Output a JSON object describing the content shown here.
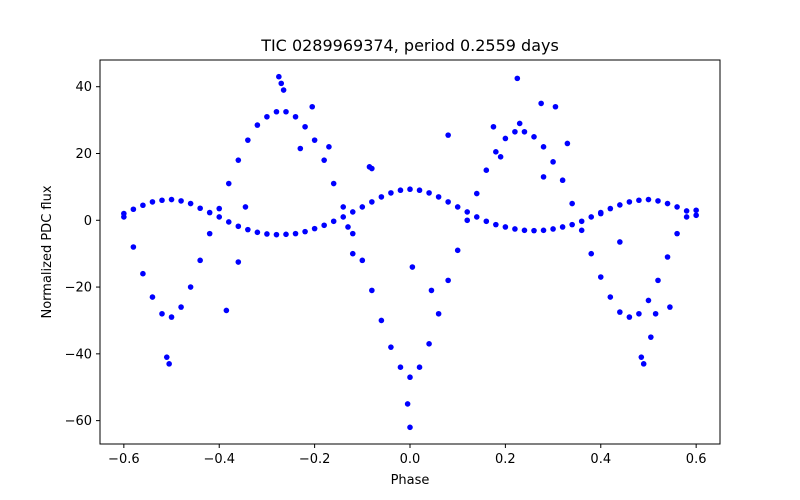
{
  "chart_data": {
    "type": "scatter",
    "title": "TIC 0289969374, period 0.2559 days",
    "xlabel": "Phase",
    "ylabel": "Normalized PDC flux",
    "xlim": [
      -0.65,
      0.65
    ],
    "ylim": [
      -67,
      48
    ],
    "xticks": [
      -0.6,
      -0.4,
      -0.2,
      0.0,
      0.2,
      0.4,
      0.6
    ],
    "xtick_labels": [
      "−0.6",
      "−0.4",
      "−0.2",
      "0.0",
      "0.2",
      "0.4",
      "0.6"
    ],
    "yticks": [
      -60,
      -40,
      -20,
      0,
      20,
      40
    ],
    "ytick_labels": [
      "−60",
      "−40",
      "−20",
      "0",
      "20",
      "40"
    ],
    "grid": false,
    "color": "#0000ff",
    "series": [
      {
        "x": [
          -0.6,
          -0.58,
          -0.56,
          -0.54,
          -0.52,
          -0.5,
          -0.48,
          -0.46,
          -0.44,
          -0.42,
          -0.4,
          -0.38,
          -0.36,
          -0.34,
          -0.32,
          -0.3,
          -0.28,
          -0.26,
          -0.24,
          -0.22,
          -0.2,
          -0.18,
          -0.16,
          -0.14,
          -0.12,
          -0.1,
          -0.08,
          -0.06,
          -0.04,
          -0.02,
          0.0,
          0.02,
          0.04,
          0.06,
          0.08,
          0.1,
          0.12,
          0.14,
          0.16,
          0.18,
          0.2,
          0.22,
          0.24,
          0.26,
          0.28,
          0.3,
          0.32,
          0.34,
          0.36,
          0.38,
          0.4,
          0.42,
          0.44,
          0.46,
          0.48,
          0.5,
          0.52,
          0.54,
          0.56,
          0.58,
          0.6
        ],
        "y": [
          2.0,
          3.3,
          4.5,
          5.5,
          6.0,
          6.2,
          5.8,
          5.0,
          3.6,
          2.3,
          1.0,
          -0.5,
          -1.8,
          -2.8,
          -3.6,
          -4.1,
          -4.3,
          -4.2,
          -4.0,
          -3.4,
          -2.5,
          -1.5,
          -0.3,
          1.0,
          2.5,
          4.0,
          5.5,
          7.0,
          8.2,
          9.0,
          9.3,
          9.0,
          8.2,
          7.0,
          5.5,
          4.0,
          2.5,
          1.0,
          -0.3,
          -1.3,
          -2.0,
          -2.6,
          -3.0,
          -3.1,
          -3.0,
          -2.6,
          -2.0,
          -1.3,
          -0.3,
          1.0,
          2.3,
          3.5,
          4.6,
          5.5,
          6.0,
          6.2,
          5.8,
          5.0,
          4.0,
          2.8,
          1.5
        ]
      },
      {
        "x": [
          -0.6,
          -0.58,
          -0.56,
          -0.54,
          -0.52,
          -0.5,
          -0.48,
          -0.46,
          -0.44,
          -0.42,
          -0.4,
          -0.38,
          -0.36,
          -0.34,
          -0.32,
          -0.3,
          -0.28,
          -0.26,
          -0.24,
          -0.22,
          -0.2,
          -0.18,
          -0.16,
          -0.14,
          -0.12,
          -0.1,
          -0.08,
          -0.06,
          -0.04,
          -0.02,
          0.0,
          0.02,
          0.04,
          0.06,
          0.08,
          0.1,
          0.12,
          0.14,
          0.16,
          0.18,
          0.2,
          0.22,
          0.24,
          0.26,
          0.28,
          0.3,
          0.32,
          0.34,
          0.36,
          0.38,
          0.4,
          0.42,
          0.44,
          0.46,
          0.48,
          0.5,
          0.52,
          0.54,
          0.56,
          0.58,
          0.6
        ],
        "y": [
          1.0,
          -8.0,
          -16.0,
          -23.0,
          -28.0,
          -29.0,
          -26.0,
          -20.0,
          -12.0,
          -4.0,
          3.5,
          11.0,
          18.0,
          24.0,
          28.5,
          31.0,
          32.5,
          32.5,
          31.0,
          28.0,
          24.0,
          18.0,
          11.0,
          4.0,
          -4.0,
          -12.0,
          -21.0,
          -30.0,
          -38.0,
          -44.0,
          -47.0,
          -44.0,
          -37.0,
          -28.0,
          -18.0,
          -9.0,
          0.0,
          8.0,
          15.0,
          20.5,
          24.5,
          26.5,
          26.5,
          25.0,
          22.0,
          17.5,
          12.0,
          5.0,
          -3.0,
          -10.0,
          -17.0,
          -23.0,
          -27.5,
          -29.0,
          -28.0,
          -24.0,
          -18.0,
          -11.0,
          -4.0,
          1.0,
          3.0
        ]
      }
    ],
    "outliers": {
      "x": [
        -0.51,
        -0.505,
        -0.385,
        -0.36,
        -0.345,
        -0.275,
        -0.27,
        -0.265,
        -0.23,
        -0.205,
        -0.17,
        -0.13,
        -0.12,
        -0.085,
        -0.08,
        -0.005,
        0.0,
        0.005,
        0.045,
        0.08,
        0.175,
        0.19,
        0.225,
        0.23,
        0.275,
        0.28,
        0.305,
        0.33,
        0.4,
        0.44,
        0.485,
        0.49,
        0.505,
        0.515,
        0.545
      ],
      "y": [
        -41,
        -43,
        -27,
        -12.5,
        4,
        43,
        41,
        39,
        21.5,
        34,
        22,
        -2,
        -10,
        16,
        15.5,
        -55,
        -62,
        -14,
        -21,
        25.5,
        28,
        19,
        42.5,
        29,
        35,
        13,
        34,
        23,
        2,
        -6.5,
        -41,
        -43,
        -35,
        -28,
        -26
      ]
    }
  }
}
